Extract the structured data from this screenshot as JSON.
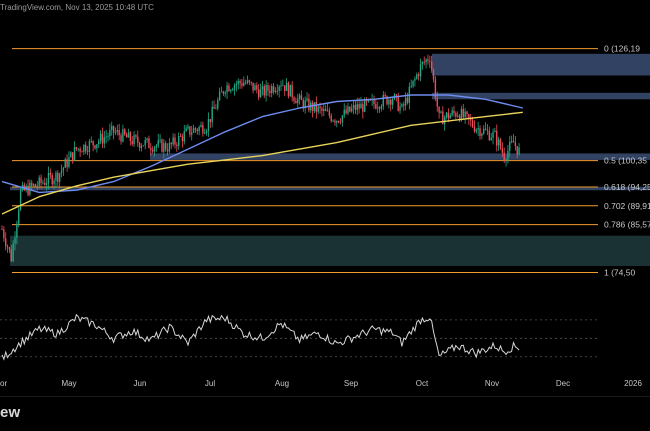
{
  "header": {
    "stamp": "TradingView.com, Nov 13, 2025 10:48 UTC"
  },
  "footer": {
    "watermark": "ew"
  },
  "colors": {
    "background": "#000000",
    "fib_line": "#f39a2b",
    "zone_blue": "#5b79b3",
    "zone_teal": "#3b6f73",
    "candle_up": "#22a884",
    "candle_down": "#ee4d5a",
    "ma_fast": "#6e8df0",
    "ma_slow": "#e8d45a",
    "rsi_line": "#d7d7d7",
    "text": "#c8c8c8"
  },
  "chart_data": [
    {
      "type": "candlestick",
      "title": "",
      "ylim": [
        70000,
        130500
      ],
      "x_labels": [
        "or",
        "May",
        "Jun",
        "Jul",
        "Aug",
        "Sep",
        "Oct",
        "Nov",
        "Dec",
        "2026"
      ],
      "fib_levels": [
        {
          "ratio": "0",
          "label": "0 (126,19",
          "price": 126198
        },
        {
          "ratio": "0.5",
          "label": "0.5 (100,35",
          "price": 100350
        },
        {
          "ratio": "0.618",
          "label": "0.618 (94,25",
          "price": 94250
        },
        {
          "ratio": "0.702",
          "label": "0.702 (89,91",
          "price": 89910
        },
        {
          "ratio": "0.786",
          "label": "0.786 (85,57",
          "price": 85570
        },
        {
          "ratio": "1",
          "label": "1 (74,50",
          "price": 74500
        }
      ],
      "zones": [
        {
          "kind": "supply",
          "low": 120000,
          "high": 125000,
          "color": "#5b79b3"
        },
        {
          "kind": "supply",
          "low": 114500,
          "high": 116000,
          "color": "#5b79b3"
        },
        {
          "kind": "support",
          "low": 100500,
          "high": 102000,
          "color": "#5b79b3"
        },
        {
          "kind": "support",
          "low": 93500,
          "high": 94300,
          "color": "#5b79b3"
        },
        {
          "kind": "demand",
          "low": 76000,
          "high": 83000,
          "color": "#3b6f73"
        }
      ],
      "close_anchors": [
        [
          0,
          84500
        ],
        [
          5,
          78000
        ],
        [
          10,
          93000
        ],
        [
          20,
          95000
        ],
        [
          30,
          97000
        ],
        [
          40,
          103000
        ],
        [
          50,
          104500
        ],
        [
          60,
          107000
        ],
        [
          70,
          105000
        ],
        [
          80,
          104000
        ],
        [
          90,
          103500
        ],
        [
          100,
          107000
        ],
        [
          110,
          108500
        ],
        [
          120,
          117500
        ],
        [
          130,
          118500
        ],
        [
          140,
          116000
        ],
        [
          150,
          118500
        ],
        [
          160,
          114000
        ],
        [
          170,
          112000
        ],
        [
          180,
          110000
        ],
        [
          190,
          112500
        ],
        [
          200,
          113500
        ],
        [
          210,
          115000
        ],
        [
          215,
          112000
        ],
        [
          225,
          122000
        ],
        [
          230,
          124500
        ],
        [
          235,
          110000
        ],
        [
          245,
          111500
        ],
        [
          255,
          108000
        ],
        [
          265,
          106000
        ],
        [
          270,
          101500
        ],
        [
          275,
          104500
        ],
        [
          278,
          102500
        ]
      ],
      "moving_averages": [
        {
          "name": "",
          "color": "#6e8df0",
          "points": [
            [
              0,
              95500
            ],
            [
              20,
              93000
            ],
            [
              40,
              93500
            ],
            [
              60,
              95500
            ],
            [
              80,
              99000
            ],
            [
              100,
              103000
            ],
            [
              120,
              107000
            ],
            [
              140,
              110500
            ],
            [
              160,
              112500
            ],
            [
              180,
              114000
            ],
            [
              200,
              114500
            ],
            [
              220,
              115500
            ],
            [
              240,
              115500
            ],
            [
              260,
              114500
            ],
            [
              280,
              112500
            ]
          ]
        },
        {
          "name": "",
          "color": "#e8d45a",
          "points": [
            [
              0,
              88000
            ],
            [
              20,
              92000
            ],
            [
              40,
              94500
            ],
            [
              60,
              96500
            ],
            [
              80,
              98000
            ],
            [
              100,
              99500
            ],
            [
              120,
              100500
            ],
            [
              140,
              101500
            ],
            [
              160,
              103000
            ],
            [
              180,
              104500
            ],
            [
              200,
              106500
            ],
            [
              220,
              108500
            ],
            [
              240,
              109500
            ],
            [
              260,
              110500
            ],
            [
              280,
              111500
            ]
          ]
        }
      ]
    },
    {
      "type": "line",
      "title": "",
      "ylim": [
        20,
        85
      ],
      "levels": [
        70,
        50,
        30
      ],
      "anchors": [
        [
          0,
          28
        ],
        [
          10,
          45
        ],
        [
          20,
          60
        ],
        [
          30,
          55
        ],
        [
          40,
          72
        ],
        [
          50,
          65
        ],
        [
          60,
          50
        ],
        [
          70,
          58
        ],
        [
          80,
          48
        ],
        [
          90,
          62
        ],
        [
          100,
          45
        ],
        [
          110,
          70
        ],
        [
          120,
          72
        ],
        [
          130,
          55
        ],
        [
          140,
          50
        ],
        [
          150,
          66
        ],
        [
          160,
          48
        ],
        [
          170,
          56
        ],
        [
          180,
          44
        ],
        [
          190,
          52
        ],
        [
          200,
          60
        ],
        [
          210,
          56
        ],
        [
          215,
          45
        ],
        [
          225,
          70
        ],
        [
          230,
          73
        ],
        [
          235,
          30
        ],
        [
          245,
          42
        ],
        [
          255,
          34
        ],
        [
          265,
          42
        ],
        [
          270,
          36
        ],
        [
          275,
          41
        ],
        [
          278,
          40
        ]
      ]
    }
  ]
}
